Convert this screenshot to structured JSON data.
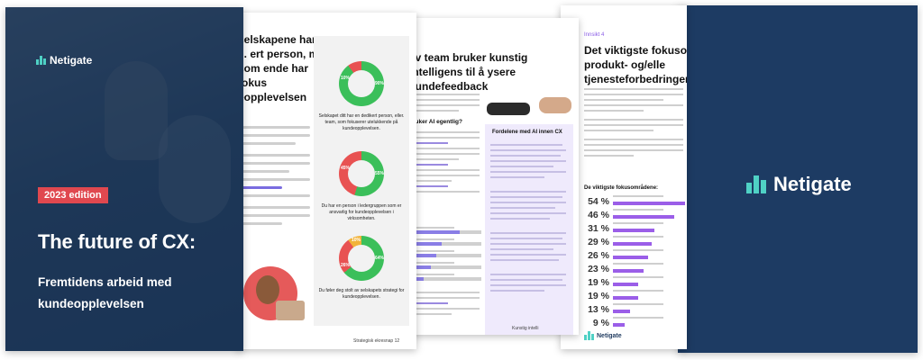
{
  "cover": {
    "brand": "Netigate",
    "edition_badge": "2023 edition",
    "title": "The future of CX:",
    "subtitle": "Fremtidens arbeid med kundeopplevelsen"
  },
  "page2": {
    "heading": "selskapene har ... ert person, m, som ende har fokus eopplevelsen",
    "donuts": [
      {
        "yes": 90,
        "no": 10,
        "caption": "Selskapet ditt har en dedikert person, eller. team, som fokuserer utelukkende på kundeopplevelsen."
      },
      {
        "yes": 55,
        "no": 45,
        "caption": "Du har en person i ledergruppen som er ansvarlig for kundeopplevelsen i virksomheten."
      },
      {
        "yes": 64,
        "no": 26,
        "other": 10,
        "caption": "Du føler deg stolt av selskapets strategi for kundeopplevelsen."
      }
    ],
    "footer": "Strategisk ekresnap 12",
    "colors": {
      "green": "#3bbf5a",
      "red": "#e85252",
      "yellow": "#f2b33a"
    }
  },
  "page3": {
    "heading": "av team bruker kunstig intelligens til å ysere kundefeedback",
    "question": "bruker AI egentlig?",
    "side_title": "Fordelene med AI innen CX",
    "footer": "Kunstig intelli"
  },
  "page4": {
    "kicker": "Innsikt 4",
    "heading": "Det viktigste fokusomr CX er produkt- og/elle tjenesteforbedringer",
    "list_title": "De viktigste fokusområdene:",
    "items": [
      {
        "pct": "54 %",
        "value": 54
      },
      {
        "pct": "46 %",
        "value": 46
      },
      {
        "pct": "31 %",
        "value": 31
      },
      {
        "pct": "29 %",
        "value": 29
      },
      {
        "pct": "26 %",
        "value": 26
      },
      {
        "pct": "23 %",
        "value": 23
      },
      {
        "pct": "19 %",
        "value": 19
      },
      {
        "pct": "19 %",
        "value": 19
      },
      {
        "pct": "13 %",
        "value": 13
      },
      {
        "pct": "9 %",
        "value": 9
      }
    ],
    "brand": "Netigate"
  },
  "back": {
    "brand": "Netigate"
  }
}
